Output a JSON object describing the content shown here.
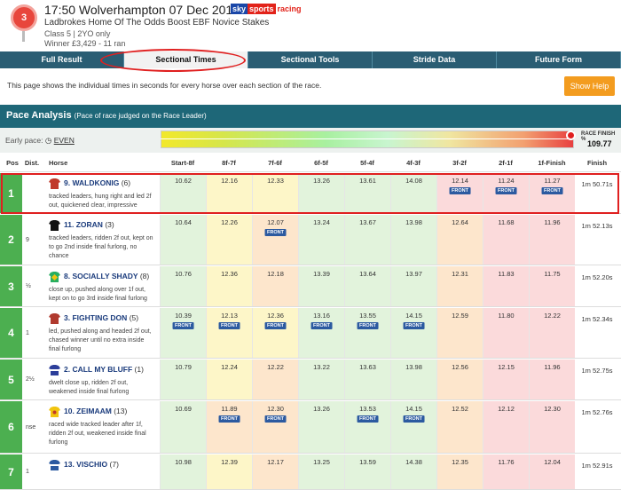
{
  "race": {
    "number": "3",
    "title": "17:50 Wolverhampton 07 Dec 2019",
    "name": "Ladbrokes Home Of The Odds Boost EBF Novice Stakes",
    "class": "Class 5 | 2YO only",
    "winner": "Winner £3,429 - 11 ran"
  },
  "logo": {
    "sky": "sky",
    "sports": "sports",
    "racing": "racing"
  },
  "tabs": [
    "Full Result",
    "Sectional Times",
    "Sectional Tools",
    "Stride Data",
    "Future Form"
  ],
  "intro": "This page shows the individual times in seconds for every horse over each section of the race.",
  "help_label": "Show Help",
  "pace_analysis": {
    "title": "Pace Analysis",
    "subtitle": "(Pace of race judged on the Race Leader)"
  },
  "early_pace": {
    "label": "Early pace:",
    "value": "EVEN"
  },
  "race_finish": {
    "label": "RACE FINISH %",
    "value": "109.77"
  },
  "columns": [
    "Pos",
    "Dist.",
    "Horse",
    "Start-8f",
    "8f-7f",
    "7f-6f",
    "6f-5f",
    "5f-4f",
    "4f-3f",
    "3f-2f",
    "2f-1f",
    "1f-Finish",
    "Finish"
  ],
  "front_label": "FRONT",
  "silk_colors": [
    "#c0392b",
    "#111111",
    "#27ae60",
    "#b03a2e",
    "#2c3e9a",
    "#f1c40f",
    "#2c5aa0"
  ],
  "rows": [
    {
      "pos": "1",
      "dist": "",
      "horse": "9. WALDKONIG",
      "draw": "(6)",
      "comment": "tracked leaders, hung right and led 2f out, quickened clear, impressive",
      "finish": "1m 50.71s",
      "cells": [
        {
          "v": "10.62",
          "c": "green",
          "f": false
        },
        {
          "v": "12.16",
          "c": "yellow",
          "f": false
        },
        {
          "v": "12.33",
          "c": "yellow",
          "f": false
        },
        {
          "v": "13.26",
          "c": "green",
          "f": false
        },
        {
          "v": "13.61",
          "c": "green",
          "f": false
        },
        {
          "v": "14.08",
          "c": "green",
          "f": false
        },
        {
          "v": "12.14",
          "c": "red",
          "f": true
        },
        {
          "v": "11.24",
          "c": "red",
          "f": true
        },
        {
          "v": "11.27",
          "c": "red",
          "f": true
        }
      ]
    },
    {
      "pos": "2",
      "dist": "9",
      "horse": "11. ZORAN",
      "draw": "(3)",
      "comment": "tracked leaders, ridden 2f out, kept on to go 2nd inside final furlong, no chance",
      "finish": "1m 52.13s",
      "cells": [
        {
          "v": "10.64",
          "c": "green",
          "f": false
        },
        {
          "v": "12.26",
          "c": "yellow",
          "f": false
        },
        {
          "v": "12.07",
          "c": "orange",
          "f": true
        },
        {
          "v": "13.24",
          "c": "green",
          "f": false
        },
        {
          "v": "13.67",
          "c": "green",
          "f": false
        },
        {
          "v": "13.98",
          "c": "green",
          "f": false
        },
        {
          "v": "12.64",
          "c": "orange",
          "f": false
        },
        {
          "v": "11.68",
          "c": "red",
          "f": false
        },
        {
          "v": "11.96",
          "c": "red",
          "f": false
        }
      ]
    },
    {
      "pos": "3",
      "dist": "½",
      "horse": "8. SOCIALLY SHADY",
      "draw": "(8)",
      "comment": "close up, pushed along over 1f out, kept on to go 3rd inside final furlong",
      "finish": "1m 52.20s",
      "cells": [
        {
          "v": "10.76",
          "c": "green",
          "f": false
        },
        {
          "v": "12.36",
          "c": "yellow",
          "f": false
        },
        {
          "v": "12.18",
          "c": "orange",
          "f": false
        },
        {
          "v": "13.39",
          "c": "green",
          "f": false
        },
        {
          "v": "13.64",
          "c": "green",
          "f": false
        },
        {
          "v": "13.97",
          "c": "green",
          "f": false
        },
        {
          "v": "12.31",
          "c": "orange",
          "f": false
        },
        {
          "v": "11.83",
          "c": "red",
          "f": false
        },
        {
          "v": "11.75",
          "c": "red",
          "f": false
        }
      ]
    },
    {
      "pos": "4",
      "dist": "1",
      "horse": "3. FIGHTING DON",
      "draw": "(5)",
      "comment": "led, pushed along and headed 2f out, chased winner until no extra inside final furlong",
      "finish": "1m 52.34s",
      "cells": [
        {
          "v": "10.39",
          "c": "green",
          "f": true
        },
        {
          "v": "12.13",
          "c": "yellow",
          "f": true
        },
        {
          "v": "12.36",
          "c": "yellow",
          "f": true
        },
        {
          "v": "13.16",
          "c": "green",
          "f": true
        },
        {
          "v": "13.55",
          "c": "green",
          "f": true
        },
        {
          "v": "14.15",
          "c": "green",
          "f": true
        },
        {
          "v": "12.59",
          "c": "orange",
          "f": false
        },
        {
          "v": "11.80",
          "c": "red",
          "f": false
        },
        {
          "v": "12.22",
          "c": "red",
          "f": false
        }
      ]
    },
    {
      "pos": "5",
      "dist": "2½",
      "horse": "2. CALL MY BLUFF",
      "draw": "(1)",
      "comment": "dwelt close up, ridden 2f out, weakened inside final furlong",
      "finish": "1m 52.75s",
      "cells": [
        {
          "v": "10.79",
          "c": "green",
          "f": false
        },
        {
          "v": "12.24",
          "c": "yellow",
          "f": false
        },
        {
          "v": "12.22",
          "c": "orange",
          "f": false
        },
        {
          "v": "13.22",
          "c": "green",
          "f": false
        },
        {
          "v": "13.63",
          "c": "green",
          "f": false
        },
        {
          "v": "13.98",
          "c": "green",
          "f": false
        },
        {
          "v": "12.56",
          "c": "orange",
          "f": false
        },
        {
          "v": "12.15",
          "c": "red",
          "f": false
        },
        {
          "v": "11.96",
          "c": "red",
          "f": false
        }
      ]
    },
    {
      "pos": "6",
      "dist": "nse",
      "horse": "10. ZEIMAAM",
      "draw": "(13)",
      "comment": "raced wide tracked leader after 1f, ridden 2f out, weakened inside final furlong",
      "finish": "1m 52.76s",
      "cells": [
        {
          "v": "10.69",
          "c": "green",
          "f": false
        },
        {
          "v": "11.89",
          "c": "orange",
          "f": true
        },
        {
          "v": "12.30",
          "c": "orange",
          "f": true
        },
        {
          "v": "13.26",
          "c": "green",
          "f": false
        },
        {
          "v": "13.53",
          "c": "green",
          "f": true
        },
        {
          "v": "14.15",
          "c": "green",
          "f": true
        },
        {
          "v": "12.52",
          "c": "orange",
          "f": false
        },
        {
          "v": "12.12",
          "c": "red",
          "f": false
        },
        {
          "v": "12.30",
          "c": "red",
          "f": false
        }
      ]
    },
    {
      "pos": "7",
      "dist": "1",
      "horse": "13. VISCHIO",
      "draw": "(7)",
      "comment": "",
      "finish": "1m 52.91s",
      "cells": [
        {
          "v": "10.98",
          "c": "green",
          "f": false
        },
        {
          "v": "12.39",
          "c": "yellow",
          "f": false
        },
        {
          "v": "12.17",
          "c": "orange",
          "f": false
        },
        {
          "v": "13.25",
          "c": "green",
          "f": false
        },
        {
          "v": "13.59",
          "c": "green",
          "f": false
        },
        {
          "v": "14.38",
          "c": "green",
          "f": false
        },
        {
          "v": "12.35",
          "c": "orange",
          "f": false
        },
        {
          "v": "11.76",
          "c": "red",
          "f": false
        },
        {
          "v": "12.04",
          "c": "red",
          "f": false
        }
      ]
    }
  ]
}
